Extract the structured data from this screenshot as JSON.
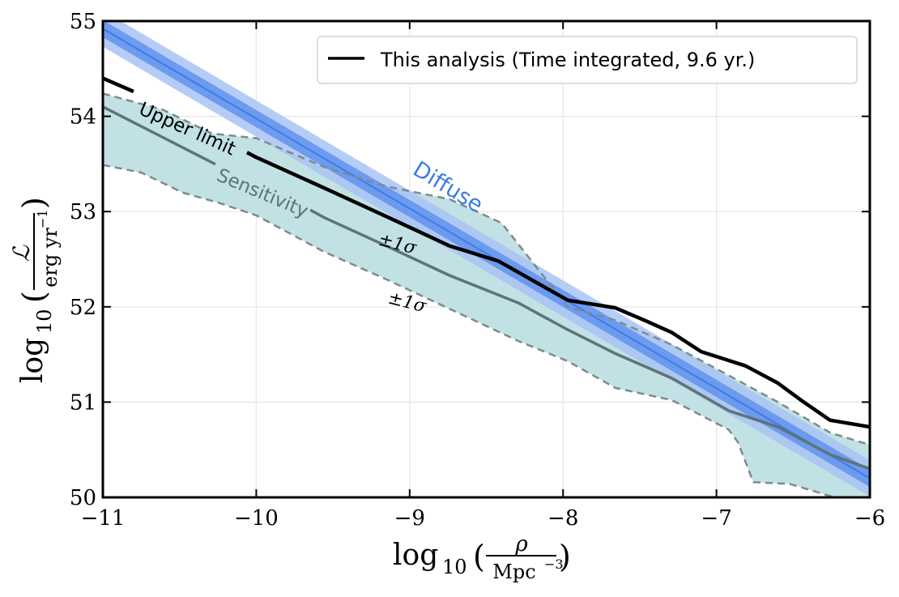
{
  "chart_data": {
    "type": "line",
    "title": "",
    "xlabel": "log10(ρ / Mpc^-3)",
    "ylabel": "log10(L / erg yr^-1)",
    "xlabel_parts": {
      "log": "log",
      "sub": "10",
      "num": "ρ",
      "den": "Mpc",
      "den_sup": "−3"
    },
    "ylabel_parts": {
      "log": "log",
      "sub": "10",
      "num": "ℒ",
      "den": "erg yr",
      "den_sup": "−1"
    },
    "xlim": [
      -11,
      -6
    ],
    "ylim": [
      50,
      55
    ],
    "xticks": [
      -11,
      -10,
      -9,
      -8,
      -7,
      -6
    ],
    "xtick_labels": [
      "−11",
      "−10",
      "−9",
      "−8",
      "−7",
      "−6"
    ],
    "yticks": [
      50,
      51,
      52,
      53,
      54,
      55
    ],
    "ytick_labels": [
      "50",
      "51",
      "52",
      "53",
      "54",
      "55"
    ],
    "grid": true,
    "legend": {
      "position": "top-right",
      "entries": [
        {
          "label": "This analysis (Time integrated, 9.6 yr.)",
          "color": "#000000"
        }
      ]
    },
    "annotations": {
      "upper_limit": "Upper limit",
      "sensitivity": "Sensitivity",
      "sigma_upper": "±1σ",
      "sigma_lower": "±1σ",
      "diffuse": "Diffuse"
    },
    "colors": {
      "upper_limit": "#000000",
      "sensitivity": "#5f7377",
      "sigma_dash": "#7d8b8d",
      "sigma_fill": "#c2e1e4",
      "diffuse_outer": "#a8c3f4",
      "diffuse_inner": "#5f92ef",
      "diffuse_center": "#3f7be6",
      "diffuse_text": "#3f7be6"
    },
    "series": [
      {
        "name": "Upper limit",
        "x": [
          -11.0,
          -10.8,
          -10.06,
          -10.0,
          -9.56,
          -9.14,
          -8.74,
          -8.42,
          -7.97,
          -7.66,
          -7.47,
          -7.29,
          -7.1,
          -6.81,
          -6.6,
          -6.44,
          -6.26,
          -6.0
        ],
        "y": [
          54.4,
          54.26,
          53.62,
          53.57,
          53.25,
          52.94,
          52.64,
          52.48,
          52.07,
          51.99,
          51.86,
          51.73,
          51.53,
          51.38,
          51.2,
          51.01,
          50.81,
          50.74
        ]
      },
      {
        "name": "Sensitivity",
        "x": [
          -11.0,
          -10.61,
          -10.27,
          -10.0,
          -9.56,
          -9.14,
          -8.74,
          -8.29,
          -7.97,
          -7.66,
          -7.29,
          -6.92,
          -6.6,
          -6.26,
          -6.0
        ],
        "y": [
          54.1,
          53.78,
          53.5,
          53.33,
          52.94,
          52.63,
          52.33,
          52.04,
          51.76,
          51.51,
          51.25,
          50.91,
          50.74,
          50.45,
          50.3
        ]
      },
      {
        "name": "Sensitivity +1σ",
        "x": [
          -11.0,
          -10.61,
          -10.29,
          -10.0,
          -9.56,
          -9.14,
          -8.74,
          -8.4,
          -7.97,
          -7.66,
          -7.29,
          -6.92,
          -6.6,
          -6.26,
          -6.0
        ],
        "y": [
          54.24,
          54.07,
          53.82,
          53.77,
          53.47,
          53.26,
          53.13,
          52.88,
          52.0,
          51.86,
          51.6,
          51.28,
          51.0,
          50.68,
          50.55
        ]
      },
      {
        "name": "Sensitivity −1σ",
        "x": [
          -11.0,
          -10.75,
          -10.48,
          -10.24,
          -10.0,
          -9.56,
          -9.14,
          -8.74,
          -8.29,
          -7.97,
          -7.66,
          -7.29,
          -6.92,
          -6.86,
          -6.76,
          -6.52,
          -6.23,
          -6.0
        ],
        "y": [
          53.49,
          53.41,
          53.2,
          53.09,
          52.96,
          52.58,
          52.28,
          51.98,
          51.64,
          51.43,
          51.15,
          51.02,
          50.71,
          50.58,
          50.16,
          50.14,
          50.0,
          50.0
        ]
      },
      {
        "name": "Diffuse",
        "x": [
          -11.0,
          -6.0
        ],
        "y": [
          54.92,
          50.2
        ],
        "band_inner_halfwidth": 0.09,
        "band_outer_halfwidth": 0.19
      }
    ]
  }
}
